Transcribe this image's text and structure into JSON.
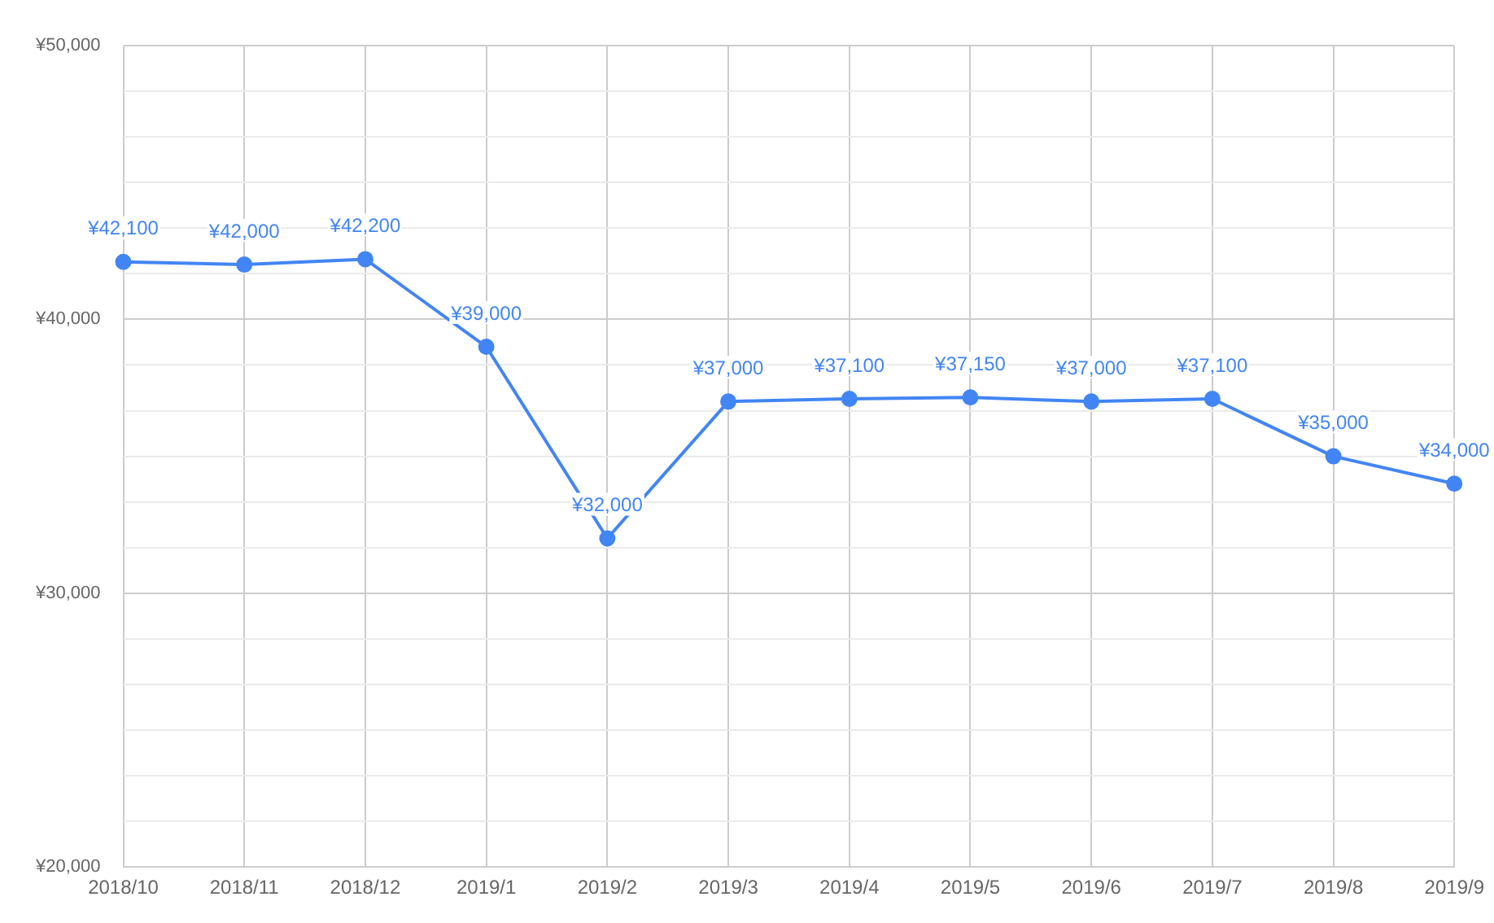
{
  "chart_data": {
    "type": "line",
    "categories": [
      "2018/10",
      "2018/11",
      "2018/12",
      "2019/1",
      "2019/2",
      "2019/3",
      "2019/4",
      "2019/5",
      "2019/6",
      "2019/7",
      "2019/8",
      "2019/9"
    ],
    "series": [
      {
        "color": "#4285f4",
        "values": [
          42100,
          42000,
          42200,
          39000,
          32000,
          37000,
          37100,
          37150,
          37000,
          37100,
          35000,
          34000
        ],
        "value_labels": [
          "¥42,100",
          "¥42,000",
          "¥42,200",
          "¥39,000",
          "¥32,000",
          "¥37,000",
          "¥37,100",
          "¥37,150",
          "¥37,000",
          "¥37,100",
          "¥35,000",
          "¥34,000"
        ]
      }
    ],
    "ylim": [
      20000,
      50000
    ],
    "yticks": [
      {
        "value": 20000,
        "label": "¥20,000"
      },
      {
        "value": 21667,
        "label": null
      },
      {
        "value": 23333,
        "label": null
      },
      {
        "value": 25000,
        "label": null
      },
      {
        "value": 26667,
        "label": null
      },
      {
        "value": 28333,
        "label": null
      },
      {
        "value": 30000,
        "label": "¥30,000"
      },
      {
        "value": 31667,
        "label": null
      },
      {
        "value": 33333,
        "label": null
      },
      {
        "value": 35000,
        "label": null
      },
      {
        "value": 36667,
        "label": null
      },
      {
        "value": 38333,
        "label": null
      },
      {
        "value": 40000,
        "label": "¥40,000"
      },
      {
        "value": 41667,
        "label": null
      },
      {
        "value": 43333,
        "label": null
      },
      {
        "value": 45000,
        "label": null
      },
      {
        "value": 46667,
        "label": null
      },
      {
        "value": 48333,
        "label": null
      },
      {
        "value": 50000,
        "label": "¥50,000"
      }
    ],
    "grid": true,
    "marker": "circle",
    "line_style": "solid",
    "legend": false
  }
}
